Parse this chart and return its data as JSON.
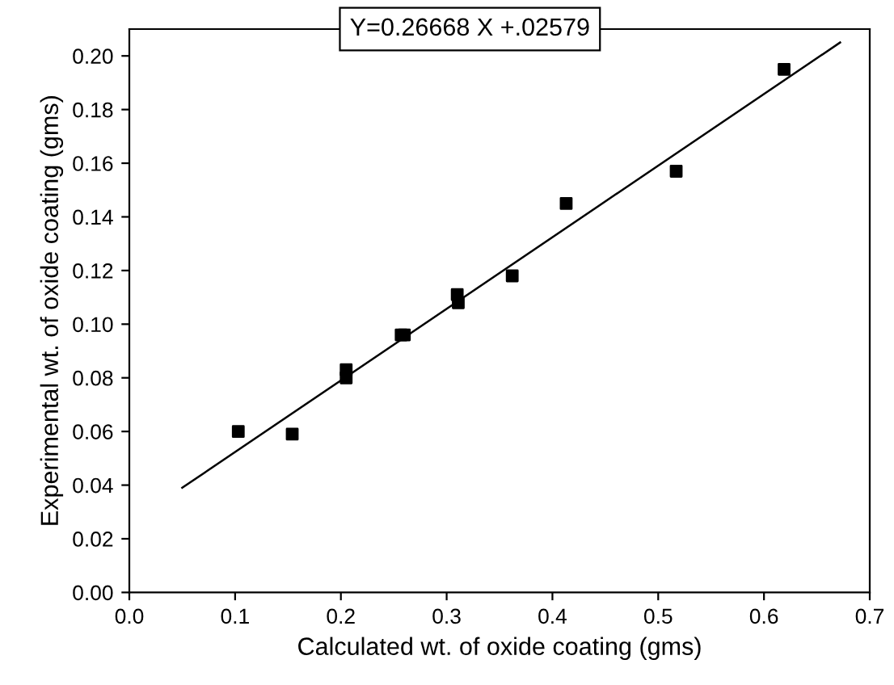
{
  "chart_data": {
    "type": "scatter",
    "xlabel": "Calculated wt. of oxide coating (gms)",
    "ylabel": "Experimental wt. of oxide coating (gms)",
    "annotations": [
      "Y=0.26668 X +.02579"
    ],
    "xlim": [
      0,
      0.7
    ],
    "ylim": [
      0,
      0.21
    ],
    "xticks": [
      {
        "value": 0,
        "label": "0.0"
      },
      0.1,
      0.2,
      0.3,
      0.4,
      0.5,
      0.6,
      0.7
    ],
    "yticks": [
      {
        "value": 0,
        "label": "0.00"
      },
      {
        "value": 0.02,
        "label": "0.02"
      },
      {
        "value": 0.04,
        "label": "0.04"
      },
      {
        "value": 0.06,
        "label": "0.06"
      },
      {
        "value": 0.08,
        "label": "0.08"
      },
      {
        "value": 0.1,
        "label": "0.10"
      },
      {
        "value": 0.12,
        "label": "0.12"
      },
      {
        "value": 0.14,
        "label": "0.14"
      },
      {
        "value": 0.16,
        "label": "0.16"
      },
      {
        "value": 0.18,
        "label": "0.18"
      },
      {
        "value": 0.2,
        "label": "0.20"
      }
    ],
    "grid": false,
    "legend": false,
    "series": [
      {
        "color": "#000000",
        "marker": "square",
        "x": [
          0.103,
          0.154,
          0.205,
          0.205,
          0.257,
          0.26,
          0.31,
          0.311,
          0.362,
          0.413,
          0.517,
          0.619
        ],
        "values": [
          0.06,
          0.059,
          0.083,
          0.08,
          0.096,
          0.096,
          0.111,
          0.108,
          0.118,
          0.145,
          0.157,
          0.195
        ]
      },
      {
        "type": "line",
        "color": "#000000",
        "marker": "none",
        "line_style": "solid",
        "x": [
          0.05,
          0.672
        ],
        "values": [
          0.039,
          0.205
        ]
      }
    ]
  }
}
